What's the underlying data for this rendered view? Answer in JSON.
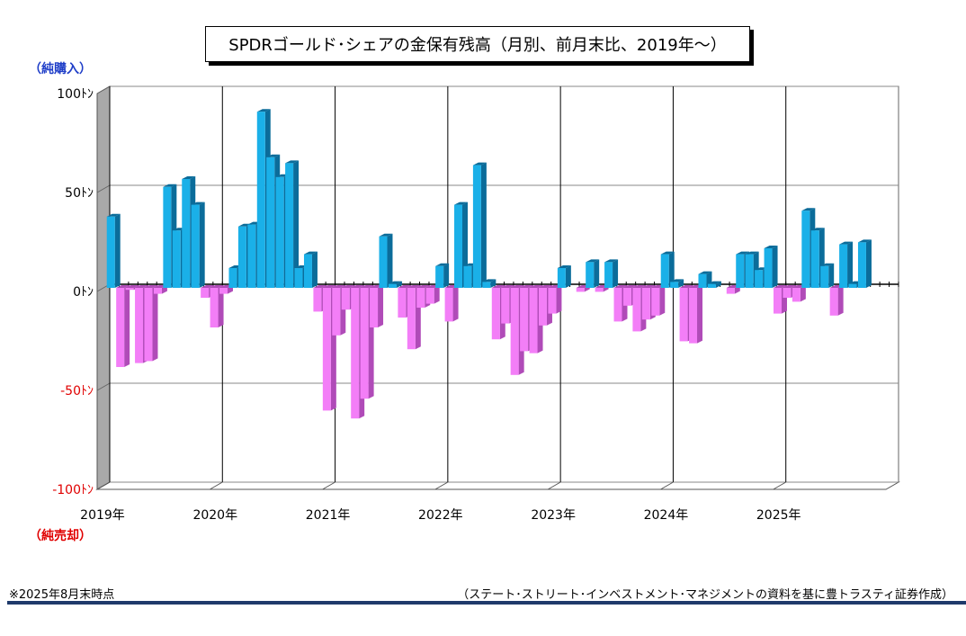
{
  "chart_data": {
    "type": "bar",
    "title": "SPDRゴールド･シェアの金保有残高（月別、前月末比、2019年～）",
    "ylabel_top": "（純購入）",
    "ylabel_bottom": "（純売却）",
    "ylim": [
      -100,
      100
    ],
    "yticks": [
      {
        "value": 100,
        "label": "100ﾄﾝ"
      },
      {
        "value": 50,
        "label": "50ﾄﾝ"
      },
      {
        "value": 0,
        "label": "0ﾄﾝ"
      },
      {
        "value": -50,
        "label": "-50ﾄﾝ"
      },
      {
        "value": -100,
        "label": "-100ﾄﾝ"
      }
    ],
    "xtick_labels": [
      "2019年",
      "2020年",
      "2021年",
      "2022年",
      "2023年",
      "2024年",
      "2025年"
    ],
    "grid": true,
    "series": [
      {
        "values": [
          36,
          -40,
          -1,
          -38,
          -37,
          -3,
          51,
          29,
          55,
          42,
          -5,
          -20,
          -3,
          10,
          31,
          32,
          89,
          66,
          56,
          63,
          10,
          17,
          -12,
          -62,
          -24,
          -11,
          -66,
          -56,
          -20,
          26,
          2,
          -15,
          -31,
          -10,
          -8,
          11,
          -17,
          42,
          11,
          62,
          3,
          -26,
          -18,
          -44,
          -32,
          -33,
          -19,
          -13,
          10,
          0,
          -2,
          13,
          -2,
          13,
          -17,
          -9,
          -22,
          -16,
          -14,
          17,
          3,
          -27,
          -28,
          7,
          2,
          0,
          -3,
          17,
          17,
          9,
          20,
          -13,
          -5,
          -7,
          39,
          29,
          11,
          -14,
          22,
          2,
          23
        ]
      }
    ],
    "colors": {
      "positive_front": "#1ab0e8",
      "positive_side": "#0b6c9a",
      "negative_front": "#f37ef7",
      "negative_side": "#b04bb8",
      "pos_tick_color": "#000000",
      "neg_tick_color": "#e00000",
      "top_label_color": "#1f3ec8",
      "bottom_label_color": "#e00000"
    }
  },
  "footnote_left": "※2025年8月末時点",
  "footnote_right": "（ステート･ストリート･インベストメント･マネジメントの資料を基に豊トラスティ証券作成）"
}
